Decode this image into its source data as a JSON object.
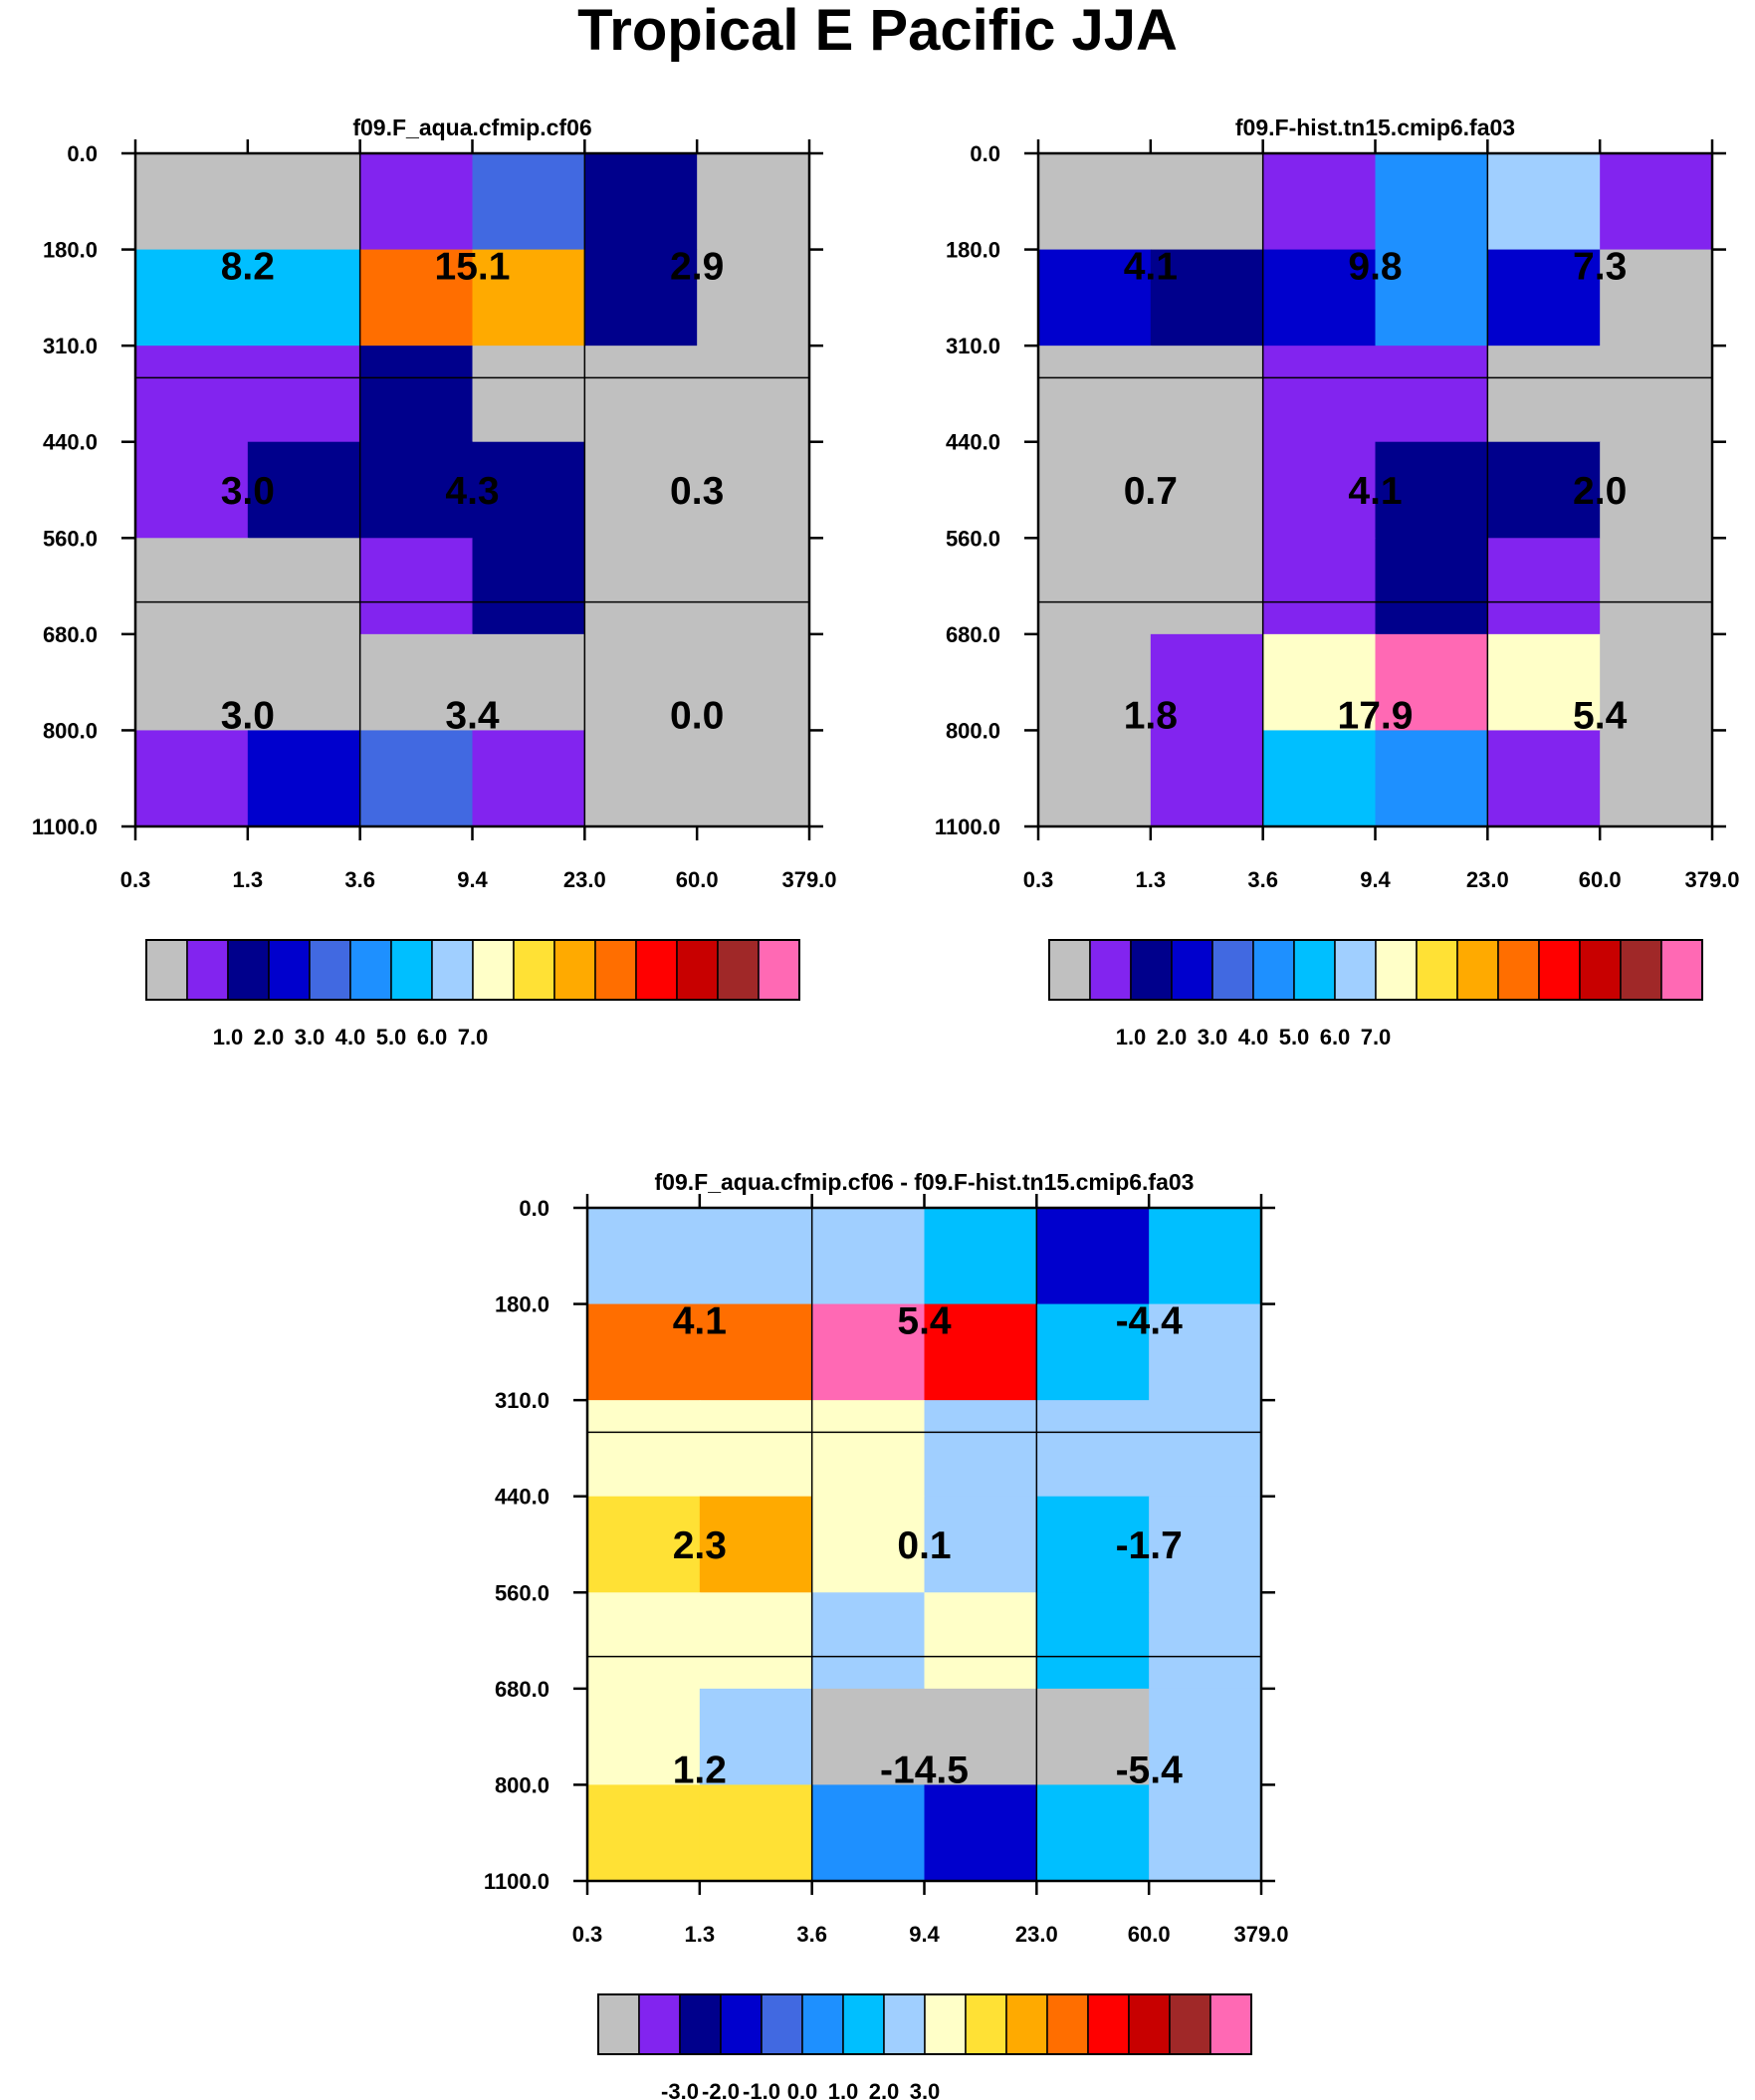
{
  "title": "Tropical E Pacific JJA",
  "colors": {
    "palette": [
      "#c0c0c0",
      "#8224ef",
      "#00008c",
      "#0000cd",
      "#4169e1",
      "#1e90ff",
      "#00bfff",
      "#a0cfff",
      "#ffffc8",
      "#ffe135",
      "#ffaa00",
      "#ff6e00",
      "#ff0000",
      "#c80000",
      "#a02828",
      "#ff69b4"
    ],
    "missing": "#c0c0c0"
  },
  "chart_data": [
    {
      "type": "heatmap",
      "title": "f09.F_aqua.cfmip.cf06",
      "x_ticks": [
        "0.3",
        "1.3",
        "3.6",
        "9.4",
        "23.0",
        "60.0",
        "379.0"
      ],
      "y_ticks": [
        "0.0",
        "180.0",
        "310.0",
        "440.0",
        "560.0",
        "680.0",
        "800.0",
        "1100.0"
      ],
      "xlabel": "",
      "ylabel": "",
      "cells": [
        [
          0,
          0,
          1,
          4,
          2,
          0
        ],
        [
          6,
          6,
          11,
          10,
          2,
          0
        ],
        [
          1,
          1,
          2,
          0,
          0,
          0
        ],
        [
          1,
          2,
          2,
          2,
          0,
          0
        ],
        [
          0,
          0,
          1,
          2,
          0,
          0
        ],
        [
          0,
          0,
          0,
          0,
          0,
          0
        ],
        [
          1,
          3,
          4,
          1,
          0,
          0
        ]
      ],
      "group_values": [
        [
          "8.2",
          "15.1",
          "2.9"
        ],
        [
          "3.0",
          "4.3",
          "0.3"
        ],
        [
          "3.0",
          "3.4",
          "0.0"
        ]
      ],
      "colorbar_labels": [
        "1.0",
        "2.0",
        "3.0",
        "4.0",
        "5.0",
        "6.0",
        "7.0"
      ]
    },
    {
      "type": "heatmap",
      "title": "f09.F-hist.tn15.cmip6.fa03",
      "x_ticks": [
        "0.3",
        "1.3",
        "3.6",
        "9.4",
        "23.0",
        "60.0",
        "379.0"
      ],
      "y_ticks": [
        "0.0",
        "180.0",
        "310.0",
        "440.0",
        "560.0",
        "680.0",
        "800.0",
        "1100.0"
      ],
      "xlabel": "",
      "ylabel": "",
      "cells": [
        [
          0,
          0,
          1,
          5,
          7,
          1
        ],
        [
          3,
          2,
          3,
          5,
          3,
          0
        ],
        [
          0,
          0,
          1,
          1,
          0,
          0
        ],
        [
          0,
          0,
          1,
          2,
          2,
          0
        ],
        [
          0,
          0,
          1,
          2,
          1,
          0
        ],
        [
          0,
          1,
          8,
          15,
          8,
          0
        ],
        [
          0,
          1,
          6,
          5,
          1,
          0
        ]
      ],
      "group_values": [
        [
          "4.1",
          "9.8",
          "7.3"
        ],
        [
          "0.7",
          "4.1",
          "2.0"
        ],
        [
          "1.8",
          "17.9",
          "5.4"
        ]
      ],
      "colorbar_labels": [
        "1.0",
        "2.0",
        "3.0",
        "4.0",
        "5.0",
        "6.0",
        "7.0"
      ]
    },
    {
      "type": "heatmap",
      "title": "f09.F_aqua.cfmip.cf06 - f09.F-hist.tn15.cmip6.fa03",
      "x_ticks": [
        "0.3",
        "1.3",
        "3.6",
        "9.4",
        "23.0",
        "60.0",
        "379.0"
      ],
      "y_ticks": [
        "0.0",
        "180.0",
        "310.0",
        "440.0",
        "560.0",
        "680.0",
        "800.0",
        "1100.0"
      ],
      "xlabel": "",
      "ylabel": "",
      "cells": [
        [
          7,
          7,
          7,
          6,
          3,
          6
        ],
        [
          11,
          11,
          15,
          12,
          6,
          7
        ],
        [
          8,
          8,
          8,
          7,
          7,
          7
        ],
        [
          9,
          10,
          8,
          7,
          6,
          7
        ],
        [
          8,
          8,
          7,
          8,
          6,
          7
        ],
        [
          8,
          7,
          0,
          0,
          0,
          7
        ],
        [
          9,
          9,
          5,
          3,
          6,
          7
        ]
      ],
      "group_values": [
        [
          "4.1",
          "5.4",
          "-4.4"
        ],
        [
          "2.3",
          "0.1",
          "-1.7"
        ],
        [
          "1.2",
          "-14.5",
          "-5.4"
        ]
      ],
      "colorbar_labels": [
        "-3.0",
        "-2.0",
        "-1.0",
        "0.0",
        "1.0",
        "2.0",
        "3.0"
      ]
    }
  ]
}
